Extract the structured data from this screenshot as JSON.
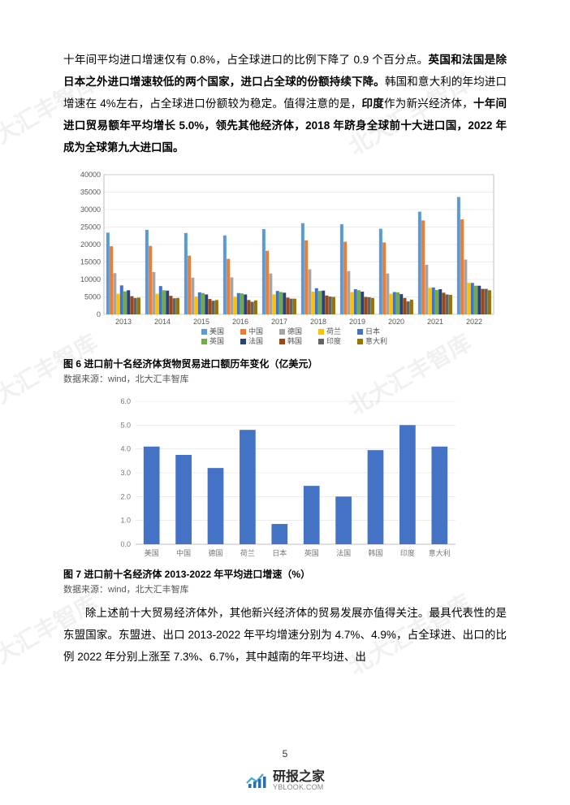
{
  "paragraph1": {
    "segments": [
      {
        "text": "十年间平均进口增速仅有 0.8%，",
        "bold": false
      },
      {
        "text": "占全球进口的比例下降了 0.9 个百分点。",
        "bold": false
      },
      {
        "text": "英国和法国是除日本之外进口增速较低的两个国家，进口占全球的份额持续下降。",
        "bold": true
      },
      {
        "text": "韩国和意大利的年均进口增速在 4%左右，占全球进口份额较为稳定。值得注意的是，",
        "bold": false
      },
      {
        "text": "印度",
        "bold": true
      },
      {
        "text": "作为新兴经济体，",
        "bold": false
      },
      {
        "text": "十年间进口贸易额年平均增长 5.0%，领先其他经济体，2018 年跻身全球前十大进口国，2022 年成为全球第九大进口国。",
        "bold": true
      }
    ]
  },
  "chart1": {
    "type": "grouped-bar",
    "ylim": [
      0,
      40000
    ],
    "ytick_step": 5000,
    "yticks": [
      0,
      5000,
      10000,
      15000,
      20000,
      25000,
      30000,
      35000,
      40000
    ],
    "categories": [
      "2013",
      "2014",
      "2015",
      "2016",
      "2017",
      "2018",
      "2019",
      "2020",
      "2021",
      "2022"
    ],
    "series": [
      {
        "name": "美国",
        "color": "#5b9bd5",
        "values": [
          23400,
          24200,
          23300,
          22600,
          24400,
          26100,
          25800,
          24500,
          29400,
          33600
        ]
      },
      {
        "name": "中国",
        "color": "#ed7d31",
        "values": [
          19500,
          19600,
          16800,
          15900,
          18200,
          21200,
          20800,
          20600,
          26900,
          27200
        ]
      },
      {
        "name": "德国",
        "color": "#a5a5a5",
        "values": [
          11800,
          12100,
          10500,
          10600,
          11700,
          12900,
          12400,
          11700,
          14200,
          15700
        ]
      },
      {
        "name": "荷兰",
        "color": "#ffc000",
        "values": [
          5900,
          5900,
          5100,
          5000,
          5700,
          6500,
          6400,
          5900,
          7600,
          9000
        ]
      },
      {
        "name": "日本",
        "color": "#4472c4",
        "values": [
          8300,
          8100,
          6300,
          6100,
          6700,
          7500,
          7200,
          6400,
          7700,
          9000
        ]
      },
      {
        "name": "英国",
        "color": "#70ad47",
        "values": [
          6600,
          6900,
          6100,
          6000,
          6400,
          6700,
          6900,
          6300,
          7000,
          8200
        ]
      },
      {
        "name": "法国",
        "color": "#264478",
        "values": [
          6900,
          6800,
          5700,
          5700,
          6200,
          6800,
          6500,
          5800,
          7200,
          8200
        ]
      },
      {
        "name": "韩国",
        "color": "#9e480e",
        "values": [
          5200,
          5300,
          4400,
          4100,
          4800,
          5400,
          5000,
          4700,
          6200,
          7300
        ]
      },
      {
        "name": "印度",
        "color": "#636363",
        "values": [
          4700,
          4600,
          3900,
          3600,
          4500,
          5100,
          4900,
          3700,
          5700,
          7300
        ]
      },
      {
        "name": "意大利",
        "color": "#997300",
        "values": [
          4800,
          4700,
          4100,
          4000,
          4500,
          5000,
          4700,
          4200,
          5600,
          6900
        ]
      }
    ],
    "background_color": "#ffffff",
    "grid_color": "#d9d9d9",
    "axis_color": "#808080",
    "tick_fontsize": 9,
    "legend_fontsize": 9
  },
  "caption1": "图 6 进口前十名经济体货物贸易进口额历年变化（亿美元）",
  "source1": "数据来源：wind，北大汇丰智库",
  "chart2": {
    "type": "bar",
    "ylim": [
      0,
      6.0
    ],
    "ytick_step": 1.0,
    "yticks": [
      "0.0",
      "1.0",
      "2.0",
      "3.0",
      "4.0",
      "5.0",
      "6.0"
    ],
    "categories": [
      "美国",
      "中国",
      "德国",
      "荷兰",
      "日本",
      "英国",
      "法国",
      "韩国",
      "印度",
      "意大利"
    ],
    "values": [
      4.1,
      3.75,
      3.2,
      4.8,
      0.85,
      2.45,
      2.0,
      3.95,
      5.0,
      4.1
    ],
    "bar_color": "#4472c4",
    "bar_width": 0.5,
    "background_color": "#ffffff",
    "grid_color": "#e0e0e0",
    "axis_color": "#b0b0b0",
    "tick_fontsize": 9
  },
  "caption2": "图 7 进口前十名经济体 2013-2022 年平均进口增速（%）",
  "source2": "数据来源：wind，北大汇丰智库",
  "paragraph2": "除上述前十大贸易经济体外，其他新兴经济体的贸易发展亦值得关注。最具代表性的是东盟国家。东盟进、出口 2013-2022 年平均增速分别为 4.7%、4.9%，占全球进、出口的比例 2022 年分别上涨至 7.3%、6.7%，其中越南的年平均进、出",
  "page_number": "5",
  "footer_main": "研报之家",
  "footer_sub": "YBLOOK.COM",
  "watermark_text": "北大汇丰智库"
}
